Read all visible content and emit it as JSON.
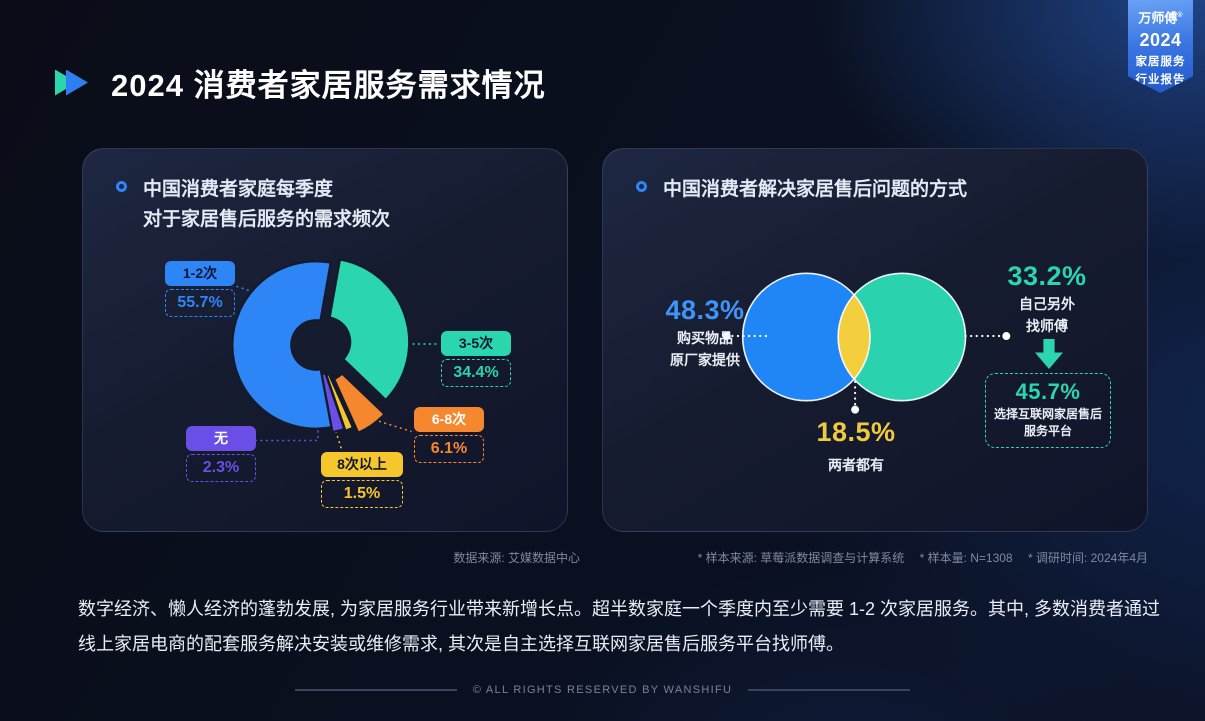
{
  "header": {
    "title": "2024 消费者家居服务需求情况",
    "badge": {
      "brand": "万师傅",
      "reg_mark": "®",
      "year": "2024",
      "line1": "家居服务",
      "line2": "行业报告"
    }
  },
  "left_card": {
    "title_line1": "中国消费者家庭每季度",
    "title_line2": "对于家居售后服务的需求频次",
    "source": "数据来源:  艾媒数据中心"
  },
  "right_card": {
    "title": "中国消费者解决家居售后问题的方式",
    "source": "* 样本来源: 草莓派数据调查与计算系统　 * 样本量: N=1308　 * 调研时间: 2024年4月"
  },
  "summary": {
    "line1": "数字经济、懒人经济的蓬勃发展, 为家居服务行业带来新增长点。超半数家庭一个季度内至少需要 1-2 次家居服务。其中, 多数消费者通过",
    "line2": "线上家居电商的配套服务解决安装或维修需求, 其次是自主选择互联网家居售后服务平台找师傅。"
  },
  "footer": {
    "copyright": "© ALL RIGHTS RESERVED BY WANSHIFU"
  },
  "colors": {
    "accent_blue": "#2e86f6",
    "accent_teal": "#2bd5ad",
    "accent_orange": "#f5882e",
    "accent_yellow": "#f6c62d",
    "accent_purple": "#6b4ee6",
    "venn_overlap_yellow": "#f3cf3d"
  },
  "chart_data": [
    {
      "type": "pie",
      "donut": true,
      "title": "中国消费者家庭每季度对于家居售后服务的需求频次",
      "categories": [
        "1-2次",
        "3-5次",
        "6-8次",
        "8次以上",
        "无"
      ],
      "values": [
        55.7,
        34.4,
        6.1,
        1.5,
        2.3
      ],
      "labels": [
        "55.7%",
        "34.4%",
        "6.1%",
        "1.5%",
        "2.3%"
      ],
      "colors": [
        "#2e86f6",
        "#2bd5ad",
        "#f5882e",
        "#f6c62d",
        "#6b4ee6"
      ],
      "source": "数据来源: 艾媒数据中心"
    },
    {
      "type": "venn",
      "title": "中国消费者解决家居售后问题的方式",
      "sets": [
        {
          "label_lines": [
            "购买物品",
            "原厂家提供"
          ],
          "value": 48.3,
          "display": "48.3%",
          "color": "#2186f5"
        },
        {
          "label_lines": [
            "自己另外",
            "找师傅"
          ],
          "value": 33.2,
          "display": "33.2%",
          "color": "#2ad3ae"
        },
        {
          "label_lines": [
            "两者都有"
          ],
          "value": 18.5,
          "display": "18.5%",
          "color": "#f3cf3d"
        },
        {
          "label_lines": [
            "选择互联网家居售后",
            "服务平台"
          ],
          "value": 45.7,
          "display": "45.7%",
          "color": "#2bd5ad"
        }
      ]
    }
  ]
}
